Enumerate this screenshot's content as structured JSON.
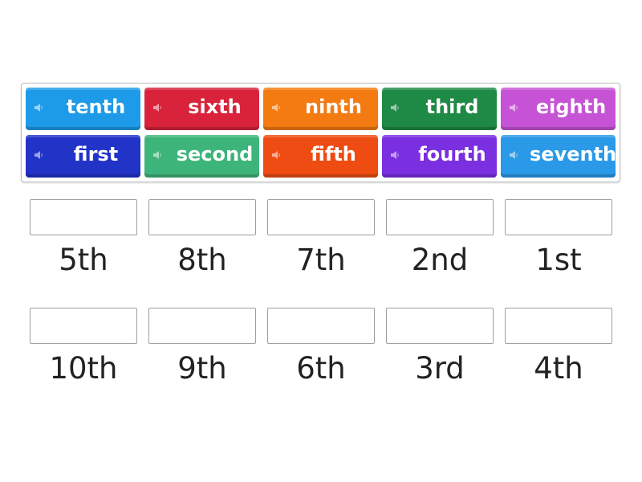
{
  "tiles": [
    {
      "label": "tenth",
      "color": "#1e9be8"
    },
    {
      "label": "sixth",
      "color": "#d8233a"
    },
    {
      "label": "ninth",
      "color": "#f47a12"
    },
    {
      "label": "third",
      "color": "#1f8a46"
    },
    {
      "label": "eighth",
      "color": "#c653d6"
    },
    {
      "label": "first",
      "color": "#2233c8"
    },
    {
      "label": "second",
      "color": "#3db57a"
    },
    {
      "label": "fifth",
      "color": "#ee4c12"
    },
    {
      "label": "fourth",
      "color": "#7a2fe0"
    },
    {
      "label": "seventh",
      "color": "#2a99e8"
    }
  ],
  "targets": [
    "5th",
    "8th",
    "7th",
    "2nd",
    "1st",
    "10th",
    "9th",
    "6th",
    "3rd",
    "4th"
  ],
  "speaker_icon": "speaker-icon"
}
